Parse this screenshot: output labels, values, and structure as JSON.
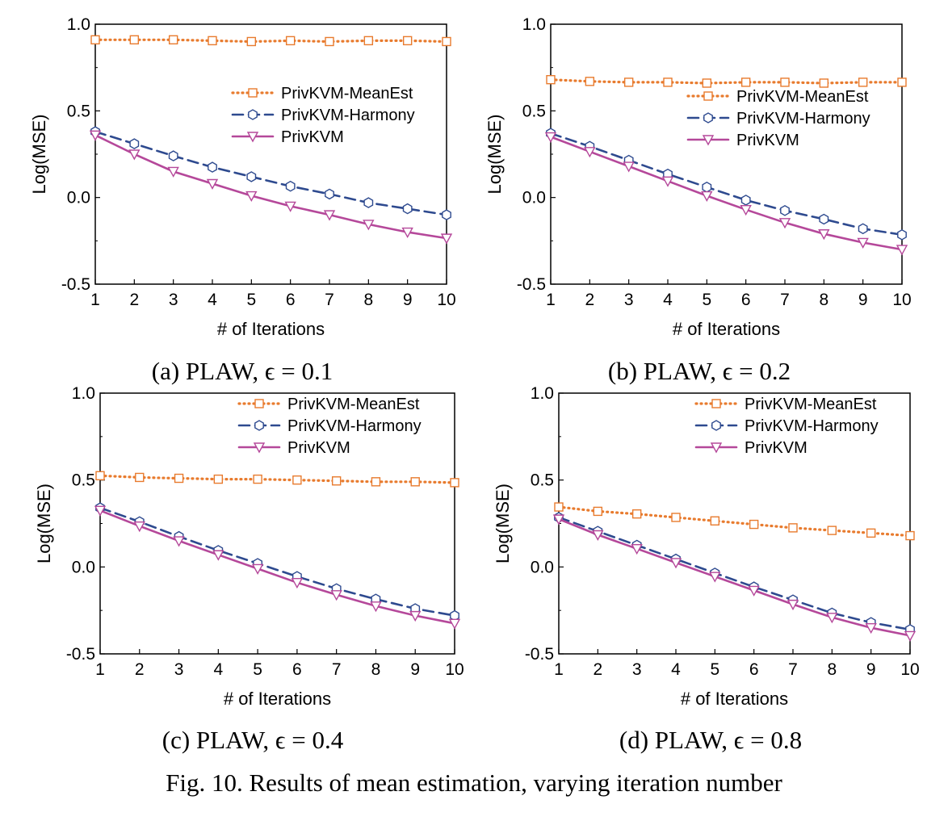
{
  "figure_caption": "Fig. 10.  Results of mean estimation, varying iteration number",
  "colors": {
    "meanest": "#e87b2e",
    "harmony": "#2e4a8f",
    "privkvm": "#b5489a"
  },
  "chart_data": [
    {
      "type": "line",
      "caption": "(a) PLAW,  ϵ = 0.1",
      "xlabel": "# of Iterations",
      "ylabel": "Log(MSE)",
      "xlim": [
        1,
        10
      ],
      "ylim": [
        -0.5,
        1.0
      ],
      "xticks": [
        "1",
        "2",
        "3",
        "4",
        "5",
        "6",
        "7",
        "8",
        "9",
        "10"
      ],
      "yticks": [
        "1.0",
        "0.5",
        "0.0",
        "-0.5"
      ],
      "legend_position": "right",
      "x": [
        1,
        2,
        3,
        4,
        5,
        6,
        7,
        8,
        9,
        10
      ],
      "series": [
        {
          "name": "PrivKVM-MeanEst",
          "marker": "square",
          "style": "dotted",
          "color": "#e87b2e",
          "values": [
            0.91,
            0.91,
            0.91,
            0.905,
            0.9,
            0.905,
            0.9,
            0.905,
            0.905,
            0.9
          ]
        },
        {
          "name": "PrivKVM-Harmony",
          "marker": "hexagon",
          "style": "dashed",
          "color": "#2e4a8f",
          "values": [
            0.38,
            0.31,
            0.24,
            0.175,
            0.12,
            0.065,
            0.02,
            -0.03,
            -0.065,
            -0.1
          ]
        },
        {
          "name": "PrivKVM",
          "marker": "triangle-down",
          "style": "solid",
          "color": "#b5489a",
          "values": [
            0.36,
            0.25,
            0.15,
            0.08,
            0.01,
            -0.05,
            -0.1,
            -0.155,
            -0.2,
            -0.235
          ]
        }
      ]
    },
    {
      "type": "line",
      "caption": "(b) PLAW,  ϵ = 0.2",
      "xlabel": "# of Iterations",
      "ylabel": "Log(MSE)",
      "xlim": [
        1,
        10
      ],
      "ylim": [
        -0.5,
        1.0
      ],
      "xticks": [
        "1",
        "2",
        "3",
        "4",
        "5",
        "6",
        "7",
        "8",
        "9",
        "10"
      ],
      "yticks": [
        "1.0",
        "0.5",
        "0.0",
        "-0.5"
      ],
      "legend_position": "right",
      "x": [
        1,
        2,
        3,
        4,
        5,
        6,
        7,
        8,
        9,
        10
      ],
      "series": [
        {
          "name": "PrivKVM-MeanEst",
          "marker": "square",
          "style": "dotted",
          "color": "#e87b2e",
          "values": [
            0.68,
            0.67,
            0.665,
            0.665,
            0.66,
            0.665,
            0.665,
            0.66,
            0.665,
            0.665
          ]
        },
        {
          "name": "PrivKVM-Harmony",
          "marker": "hexagon",
          "style": "dashed",
          "color": "#2e4a8f",
          "values": [
            0.37,
            0.295,
            0.215,
            0.135,
            0.06,
            -0.015,
            -0.075,
            -0.125,
            -0.18,
            -0.215
          ]
        },
        {
          "name": "PrivKVM",
          "marker": "triangle-down",
          "style": "solid",
          "color": "#b5489a",
          "values": [
            0.35,
            0.265,
            0.18,
            0.095,
            0.01,
            -0.07,
            -0.145,
            -0.21,
            -0.26,
            -0.3
          ]
        }
      ]
    },
    {
      "type": "line",
      "caption": "(c) PLAW,  ϵ = 0.4",
      "xlabel": "# of Iterations",
      "ylabel": "Log(MSE)",
      "xlim": [
        1,
        10
      ],
      "ylim": [
        -0.5,
        1.0
      ],
      "xticks": [
        "1",
        "2",
        "3",
        "4",
        "5",
        "6",
        "7",
        "8",
        "9",
        "10"
      ],
      "yticks": [
        "1.0",
        "0.5",
        "0.0",
        "-0.5"
      ],
      "legend_position": "top-right",
      "x": [
        1,
        2,
        3,
        4,
        5,
        6,
        7,
        8,
        9,
        10
      ],
      "series": [
        {
          "name": "PrivKVM-MeanEst",
          "marker": "square",
          "style": "dotted",
          "color": "#e87b2e",
          "values": [
            0.525,
            0.515,
            0.51,
            0.505,
            0.505,
            0.5,
            0.495,
            0.49,
            0.49,
            0.485
          ]
        },
        {
          "name": "PrivKVM-Harmony",
          "marker": "hexagon",
          "style": "dashed",
          "color": "#2e4a8f",
          "values": [
            0.34,
            0.26,
            0.175,
            0.095,
            0.02,
            -0.055,
            -0.125,
            -0.185,
            -0.24,
            -0.28
          ]
        },
        {
          "name": "PrivKVM",
          "marker": "triangle-down",
          "style": "solid",
          "color": "#b5489a",
          "values": [
            0.325,
            0.235,
            0.15,
            0.07,
            -0.01,
            -0.09,
            -0.16,
            -0.225,
            -0.28,
            -0.325
          ]
        }
      ]
    },
    {
      "type": "line",
      "caption": "(d) PLAW,  ϵ = 0.8",
      "xlabel": "# of Iterations",
      "ylabel": "Log(MSE)",
      "xlim": [
        1,
        10
      ],
      "ylim": [
        -0.5,
        1.0
      ],
      "xticks": [
        "1",
        "2",
        "3",
        "4",
        "5",
        "6",
        "7",
        "8",
        "9",
        "10"
      ],
      "yticks": [
        "1.0",
        "0.5",
        "0.0",
        "-0.5"
      ],
      "legend_position": "top-right",
      "x": [
        1,
        2,
        3,
        4,
        5,
        6,
        7,
        8,
        9,
        10
      ],
      "series": [
        {
          "name": "PrivKVM-MeanEst",
          "marker": "square",
          "style": "dotted",
          "color": "#e87b2e",
          "values": [
            0.345,
            0.32,
            0.305,
            0.285,
            0.265,
            0.245,
            0.225,
            0.21,
            0.195,
            0.18
          ]
        },
        {
          "name": "PrivKVM-Harmony",
          "marker": "hexagon",
          "style": "dashed",
          "color": "#2e4a8f",
          "values": [
            0.285,
            0.205,
            0.125,
            0.045,
            -0.035,
            -0.115,
            -0.19,
            -0.265,
            -0.32,
            -0.36
          ]
        },
        {
          "name": "PrivKVM",
          "marker": "triangle-down",
          "style": "solid",
          "color": "#b5489a",
          "values": [
            0.275,
            0.185,
            0.105,
            0.025,
            -0.055,
            -0.135,
            -0.215,
            -0.29,
            -0.35,
            -0.395
          ]
        }
      ]
    }
  ]
}
